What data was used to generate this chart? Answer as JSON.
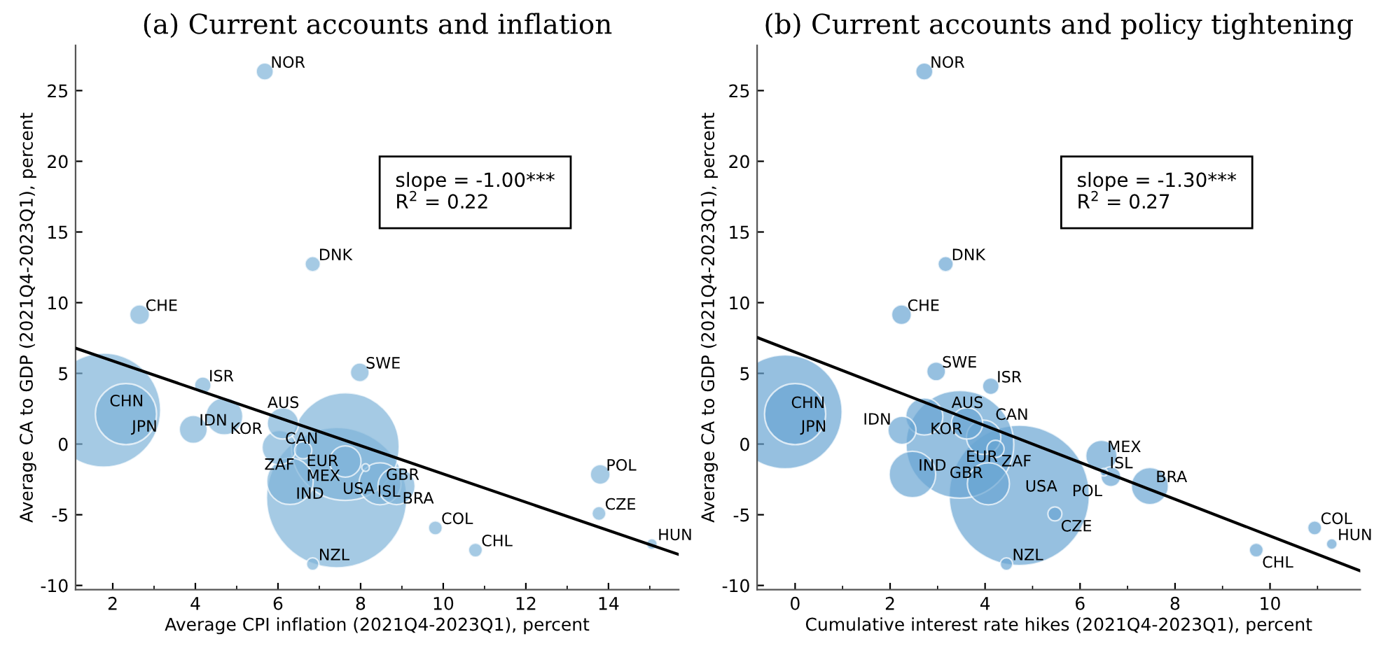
{
  "chart_data": [
    {
      "type": "bubble",
      "title": "(a) Current accounts and inflation",
      "xlabel": "Average CPI inflation (2021Q4-2023Q1), percent",
      "ylabel": "Average CA to GDP (2021Q4-2023Q1), percent",
      "xlim": [
        1.1,
        15.7
      ],
      "ylim": [
        -10.3,
        28.2
      ],
      "xticks": [
        2,
        4,
        6,
        8,
        10,
        12,
        14
      ],
      "yticks": [
        -10,
        -5,
        0,
        5,
        10,
        15,
        20,
        25
      ],
      "series": [
        {
          "color": "#7fb3d9",
          "x": [
            7.42,
            1.78,
            7.63,
            2.32,
            6.29,
            8.47,
            8.87,
            4.7,
            6.03,
            6.12,
            7.63,
            3.95,
            2.65,
            7.98,
            13.8,
            5.68,
            6.61,
            4.18,
            6.84,
            9.81,
            10.78,
            13.77,
            6.84,
            15.05,
            8.12
          ],
          "values": [
            -3.79,
            2.4,
            -0.18,
            2.12,
            -2.63,
            -2.81,
            -2.97,
            1.96,
            -0.25,
            1.46,
            -1.23,
            1.04,
            9.15,
            5.07,
            -2.15,
            26.35,
            -0.44,
            4.16,
            12.73,
            -5.93,
            -7.5,
            -4.91,
            -8.49,
            -7.07,
            -1.66
          ],
          "sizes": [
            1,
            0.66,
            0.59,
            0.19,
            0.11,
            0.09,
            0.07,
            0.07,
            0.06,
            0.05,
            0.05,
            0.04,
            0.02,
            0.018,
            0.02,
            0.015,
            0.015,
            0.014,
            0.012,
            0.01,
            0.01,
            0.01,
            0.008,
            0.006,
            0.003
          ]
        },
        {
          "type": "line",
          "color": "#000000",
          "x": [
            1.1,
            15.7
          ],
          "values": [
            6.78,
            -7.81
          ]
        }
      ],
      "annotations": [
        {
          "text": "USA",
          "x": 7.42,
          "y": -3.79
        },
        {
          "text": "CHN",
          "x": 1.78,
          "y": 2.4
        },
        {
          "text": "EUR",
          "x": 7.63,
          "y": -0.18
        },
        {
          "text": "JPN",
          "x": 2.32,
          "y": 2.12
        },
        {
          "text": "IND",
          "x": 6.29,
          "y": -2.63
        },
        {
          "text": "GBR",
          "x": 8.47,
          "y": -2.81
        },
        {
          "text": "BRA",
          "x": 8.87,
          "y": -2.97
        },
        {
          "text": "KOR",
          "x": 4.7,
          "y": 1.96
        },
        {
          "text": "CAN",
          "x": 6.03,
          "y": -0.25
        },
        {
          "text": "AUS",
          "x": 6.12,
          "y": 1.46
        },
        {
          "text": "MEX",
          "x": 7.63,
          "y": -1.23
        },
        {
          "text": "IDN",
          "x": 3.95,
          "y": 1.04
        },
        {
          "text": "CHE",
          "x": 2.65,
          "y": 9.15
        },
        {
          "text": "SWE",
          "x": 7.98,
          "y": 5.07
        },
        {
          "text": "POL",
          "x": 13.8,
          "y": -2.15
        },
        {
          "text": "NOR",
          "x": 5.68,
          "y": 26.35
        },
        {
          "text": "ZAF",
          "x": 6.61,
          "y": -0.44
        },
        {
          "text": "ISR",
          "x": 4.18,
          "y": 4.16
        },
        {
          "text": "DNK",
          "x": 6.84,
          "y": 12.73
        },
        {
          "text": "COL",
          "x": 9.81,
          "y": -5.93
        },
        {
          "text": "CHL",
          "x": 10.78,
          "y": -7.5
        },
        {
          "text": "CZE",
          "x": 13.77,
          "y": -4.91
        },
        {
          "text": "NZL",
          "x": 6.84,
          "y": -8.49
        },
        {
          "text": "HUN",
          "x": 15.05,
          "y": -7.07
        },
        {
          "text": "ISL",
          "x": 8.12,
          "y": -1.66
        },
        "slope = -1.00***\nR$^{2}$ = 0.22"
      ]
    },
    {
      "type": "bubble",
      "title": "(b) Current accounts and policy tightening",
      "xlabel": "Cumulative interest rate hikes (2021Q4-2023Q1), percent",
      "ylabel": "Average CA to GDP (2021Q4-2023Q1), percent",
      "xlim": [
        -0.8,
        11.9
      ],
      "ylim": [
        -10.3,
        28.2
      ],
      "xticks": [
        0,
        2,
        4,
        6,
        8,
        10
      ],
      "yticks": [
        -10,
        -5,
        0,
        5,
        10,
        15,
        20,
        25
      ],
      "series": [
        {
          "color": "#6aa5d3",
          "x": [
            4.72,
            -0.21,
            3.47,
            0.0,
            2.47,
            4.07,
            7.47,
            2.72,
            3.97,
            3.62,
            6.45,
            2.25,
            2.24,
            2.97,
            6.65,
            2.72,
            4.22,
            4.12,
            3.17,
            10.94,
            9.71,
            5.47,
            4.45,
            11.3,
            6.5
          ],
          "values": [
            -3.63,
            2.28,
            -0.02,
            2.12,
            -2.15,
            -2.81,
            -2.97,
            1.95,
            0.48,
            1.46,
            -0.84,
            0.97,
            9.15,
            5.14,
            -2.31,
            26.35,
            -0.34,
            4.09,
            12.73,
            -5.93,
            -7.5,
            -4.94,
            -8.49,
            -7.07,
            -1.99
          ],
          "sizes": [
            1,
            0.66,
            0.59,
            0.19,
            0.11,
            0.09,
            0.07,
            0.07,
            0.06,
            0.05,
            0.05,
            0.04,
            0.02,
            0.018,
            0.02,
            0.015,
            0.015,
            0.014,
            0.012,
            0.01,
            0.01,
            0.01,
            0.008,
            0.006,
            0.003
          ]
        },
        {
          "type": "line",
          "color": "#000000",
          "x": [
            -0.8,
            11.9
          ],
          "values": [
            7.54,
            -8.97
          ]
        }
      ],
      "annotations": [
        {
          "text": "USA",
          "x": 4.72,
          "y": -3.63
        },
        {
          "text": "CHN",
          "x": -0.21,
          "y": 2.28
        },
        {
          "text": "EUR",
          "x": 3.47,
          "y": -0.02
        },
        {
          "text": "JPN",
          "x": 0.0,
          "y": 2.12
        },
        {
          "text": "IND",
          "x": 2.47,
          "y": -2.15
        },
        {
          "text": "GBR",
          "x": 4.07,
          "y": -2.81
        },
        {
          "text": "BRA",
          "x": 7.47,
          "y": -2.97
        },
        {
          "text": "KOR",
          "x": 2.72,
          "y": 1.95
        },
        {
          "text": "CAN",
          "x": 3.97,
          "y": 0.48
        },
        {
          "text": "AUS",
          "x": 3.62,
          "y": 1.46
        },
        {
          "text": "MEX",
          "x": 6.45,
          "y": -0.84
        },
        {
          "text": "IDN",
          "x": 2.25,
          "y": 0.97
        },
        {
          "text": "CHE",
          "x": 2.24,
          "y": 9.15
        },
        {
          "text": "SWE",
          "x": 2.97,
          "y": 5.14
        },
        {
          "text": "POL",
          "x": 6.65,
          "y": -2.31
        },
        {
          "text": "NOR",
          "x": 2.72,
          "y": 26.35
        },
        {
          "text": "ZAF",
          "x": 4.22,
          "y": -0.34
        },
        {
          "text": "ISR",
          "x": 4.12,
          "y": 4.09
        },
        {
          "text": "DNK",
          "x": 3.17,
          "y": 12.73
        },
        {
          "text": "COL",
          "x": 10.94,
          "y": -5.93
        },
        {
          "text": "CHL",
          "x": 9.71,
          "y": -7.5
        },
        {
          "text": "CZE",
          "x": 5.47,
          "y": -4.94
        },
        {
          "text": "NZL",
          "x": 4.45,
          "y": -8.49
        },
        {
          "text": "HUN",
          "x": 11.3,
          "y": -7.07
        },
        {
          "text": "ISL",
          "x": 6.5,
          "y": -1.99
        },
        "slope = -1.30***\nR$^{2}$ = 0.27"
      ]
    }
  ]
}
